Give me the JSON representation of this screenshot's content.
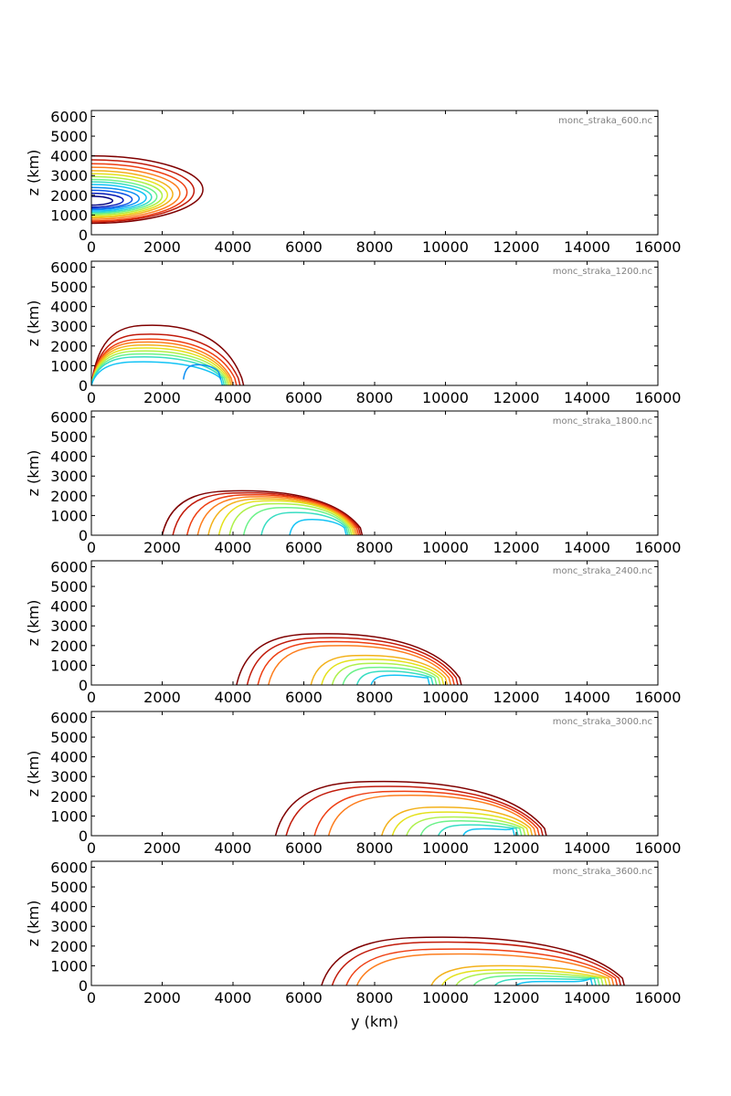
{
  "chart_data": [
    {
      "type": "contour",
      "file_label": "monc_straka_600.nc",
      "xlim": [
        0,
        16000
      ],
      "ylim": [
        0,
        6300
      ],
      "xticks": [
        "0",
        "2000",
        "4000",
        "6000",
        "8000",
        "10000",
        "12000",
        "14000",
        "16000"
      ],
      "yticks": [
        "0",
        "1000",
        "2000",
        "3000",
        "4000",
        "5000",
        "6000"
      ],
      "ylabel": "z (km)",
      "xlabel": "",
      "colors": [
        "#7f0000",
        "#c11a0a",
        "#ee3e12",
        "#fd7d1d",
        "#f3b11a",
        "#e4e11b",
        "#aef04a",
        "#6cf28a",
        "#37ddc2",
        "#13c3f5",
        "#0b8ff3",
        "#0a52e6",
        "#061ab8",
        "#00007f"
      ],
      "levels": [
        {
          "shape": "blob",
          "x": [
            0,
            3150
          ],
          "y": [
            580,
            4000
          ]
        },
        {
          "shape": "blob",
          "x": [
            0,
            2900
          ],
          "y": [
            650,
            3800
          ]
        },
        {
          "shape": "blob",
          "x": [
            0,
            2700
          ],
          "y": [
            700,
            3600
          ]
        },
        {
          "shape": "blob",
          "x": [
            0,
            2500
          ],
          "y": [
            780,
            3420
          ]
        },
        {
          "shape": "blob",
          "x": [
            0,
            2300
          ],
          "y": [
            860,
            3250
          ]
        },
        {
          "shape": "blob",
          "x": [
            0,
            2150
          ],
          "y": [
            930,
            3100
          ]
        },
        {
          "shape": "blob",
          "x": [
            0,
            2000
          ],
          "y": [
            1000,
            2950
          ]
        },
        {
          "shape": "blob",
          "x": [
            0,
            1850
          ],
          "y": [
            1070,
            2800
          ]
        },
        {
          "shape": "blob",
          "x": [
            0,
            1700
          ],
          "y": [
            1130,
            2680
          ]
        },
        {
          "shape": "blob",
          "x": [
            0,
            1550
          ],
          "y": [
            1200,
            2550
          ]
        },
        {
          "shape": "blob",
          "x": [
            0,
            1350
          ],
          "y": [
            1270,
            2400
          ]
        },
        {
          "shape": "blob",
          "x": [
            0,
            1150
          ],
          "y": [
            1330,
            2250
          ]
        },
        {
          "shape": "blob",
          "x": [
            0,
            900
          ],
          "y": [
            1400,
            2100
          ]
        },
        {
          "shape": "blob",
          "x": [
            0,
            600
          ],
          "y": [
            1500,
            1950
          ]
        }
      ]
    },
    {
      "type": "contour",
      "file_label": "monc_straka_1200.nc",
      "xlim": [
        0,
        16000
      ],
      "ylim": [
        0,
        6300
      ],
      "xticks": [
        "0",
        "2000",
        "4000",
        "6000",
        "8000",
        "10000",
        "12000",
        "14000",
        "16000"
      ],
      "yticks": [
        "0",
        "1000",
        "2000",
        "3000",
        "4000",
        "5000",
        "6000"
      ],
      "ylabel": "z (km)",
      "xlabel": "",
      "colors": [
        "#7f0000",
        "#c11a0a",
        "#ee3e12",
        "#fd7d1d",
        "#f3b11a",
        "#e4e11b",
        "#aef04a",
        "#6cf28a",
        "#37ddc2",
        "#13c3f5",
        "#0b8ff3"
      ],
      "levels": [
        {
          "shape": "tongue",
          "x": [
            0,
            4300
          ],
          "y": [
            0,
            3050
          ]
        },
        {
          "shape": "tongue",
          "x": [
            0,
            4200
          ],
          "y": [
            0,
            2600
          ]
        },
        {
          "shape": "tongue",
          "x": [
            0,
            4100
          ],
          "y": [
            0,
            2350
          ]
        },
        {
          "shape": "tongue",
          "x": [
            0,
            4000
          ],
          "y": [
            0,
            2200
          ]
        },
        {
          "shape": "tongue",
          "x": [
            0,
            3950
          ],
          "y": [
            0,
            2050
          ]
        },
        {
          "shape": "tongue",
          "x": [
            0,
            3900
          ],
          "y": [
            0,
            1900
          ]
        },
        {
          "shape": "tongue",
          "x": [
            0,
            3850
          ],
          "y": [
            0,
            1750
          ]
        },
        {
          "shape": "tongue",
          "x": [
            0,
            3800
          ],
          "y": [
            0,
            1600
          ]
        },
        {
          "shape": "tongue",
          "x": [
            0,
            3750
          ],
          "y": [
            0,
            1450
          ]
        },
        {
          "shape": "tongue",
          "x": [
            0,
            3700
          ],
          "y": [
            0,
            1200
          ]
        },
        {
          "shape": "tongue",
          "x": [
            2600,
            3650
          ],
          "y": [
            300,
            1050
          ]
        }
      ]
    },
    {
      "type": "contour",
      "file_label": "monc_straka_1800.nc",
      "xlim": [
        0,
        16000
      ],
      "ylim": [
        0,
        6300
      ],
      "xticks": [
        "0",
        "2000",
        "4000",
        "6000",
        "8000",
        "10000",
        "12000",
        "14000",
        "16000"
      ],
      "yticks": [
        "0",
        "1000",
        "2000",
        "3000",
        "4000",
        "5000",
        "6000"
      ],
      "ylabel": "z (km)",
      "xlabel": "",
      "colors": [
        "#7f0000",
        "#c11a0a",
        "#ee3e12",
        "#fd7d1d",
        "#f3b11a",
        "#e4e11b",
        "#aef04a",
        "#6cf28a",
        "#37ddc2",
        "#13c3f5"
      ],
      "levels": [
        {
          "shape": "tongue",
          "x": [
            2000,
            7650
          ],
          "y": [
            0,
            2250
          ]
        },
        {
          "shape": "tongue",
          "x": [
            2300,
            7600
          ],
          "y": [
            0,
            2150
          ]
        },
        {
          "shape": "tongue",
          "x": [
            2700,
            7550
          ],
          "y": [
            0,
            2050
          ]
        },
        {
          "shape": "tongue",
          "x": [
            3000,
            7500
          ],
          "y": [
            0,
            1950
          ]
        },
        {
          "shape": "tongue",
          "x": [
            3300,
            7450
          ],
          "y": [
            0,
            1850
          ]
        },
        {
          "shape": "tongue",
          "x": [
            3600,
            7400
          ],
          "y": [
            0,
            1750
          ]
        },
        {
          "shape": "tongue",
          "x": [
            3900,
            7350
          ],
          "y": [
            0,
            1600
          ]
        },
        {
          "shape": "tongue",
          "x": [
            4300,
            7300
          ],
          "y": [
            0,
            1400
          ]
        },
        {
          "shape": "tongue",
          "x": [
            4800,
            7250
          ],
          "y": [
            0,
            1150
          ]
        },
        {
          "shape": "tongue",
          "x": [
            5600,
            7200
          ],
          "y": [
            0,
            800
          ]
        }
      ]
    },
    {
      "type": "contour",
      "file_label": "monc_straka_2400.nc",
      "xlim": [
        0,
        16000
      ],
      "ylim": [
        0,
        6300
      ],
      "xticks": [
        "0",
        "2000",
        "4000",
        "6000",
        "8000",
        "10000",
        "12000",
        "14000",
        "16000"
      ],
      "yticks": [
        "0",
        "1000",
        "2000",
        "3000",
        "4000",
        "5000",
        "6000"
      ],
      "ylabel": "z (km)",
      "xlabel": "",
      "colors": [
        "#7f0000",
        "#c11a0a",
        "#ee3e12",
        "#fd7d1d",
        "#f3b11a",
        "#e4e11b",
        "#aef04a",
        "#6cf28a",
        "#37ddc2",
        "#13c3f5"
      ],
      "levels": [
        {
          "shape": "tongue",
          "x": [
            4100,
            10450
          ],
          "y": [
            0,
            2600
          ]
        },
        {
          "shape": "tongue",
          "x": [
            4400,
            10350
          ],
          "y": [
            0,
            2400
          ]
        },
        {
          "shape": "tongue",
          "x": [
            4700,
            10250
          ],
          "y": [
            0,
            2200
          ]
        },
        {
          "shape": "tongue",
          "x": [
            5000,
            10150
          ],
          "y": [
            0,
            2000
          ]
        },
        {
          "shape": "tongue",
          "x": [
            6200,
            10050
          ],
          "y": [
            0,
            1500
          ]
        },
        {
          "shape": "tongue",
          "x": [
            6500,
            9950
          ],
          "y": [
            0,
            1300
          ]
        },
        {
          "shape": "tongue",
          "x": [
            6800,
            9850
          ],
          "y": [
            0,
            1100
          ]
        },
        {
          "shape": "tongue",
          "x": [
            7100,
            9750
          ],
          "y": [
            0,
            900
          ]
        },
        {
          "shape": "tongue",
          "x": [
            7500,
            9650
          ],
          "y": [
            0,
            700
          ]
        },
        {
          "shape": "tongue",
          "x": [
            7900,
            9550
          ],
          "y": [
            0,
            500
          ]
        }
      ]
    },
    {
      "type": "contour",
      "file_label": "monc_straka_3000.nc",
      "xlim": [
        0,
        16000
      ],
      "ylim": [
        0,
        6300
      ],
      "xticks": [
        "0",
        "2000",
        "4000",
        "6000",
        "8000",
        "10000",
        "12000",
        "14000",
        "16000"
      ],
      "yticks": [
        "0",
        "1000",
        "2000",
        "3000",
        "4000",
        "5000",
        "6000"
      ],
      "ylabel": "z (km)",
      "xlabel": "",
      "colors": [
        "#7f0000",
        "#c11a0a",
        "#ee3e12",
        "#fd7d1d",
        "#f3b11a",
        "#e4e11b",
        "#aef04a",
        "#6cf28a",
        "#37ddc2",
        "#13c3f5"
      ],
      "levels": [
        {
          "shape": "tongue",
          "x": [
            5200,
            12850
          ],
          "y": [
            0,
            2750
          ]
        },
        {
          "shape": "tongue",
          "x": [
            5500,
            12750
          ],
          "y": [
            0,
            2500
          ]
        },
        {
          "shape": "tongue",
          "x": [
            6300,
            12650
          ],
          "y": [
            0,
            2250
          ]
        },
        {
          "shape": "tongue",
          "x": [
            6700,
            12550
          ],
          "y": [
            0,
            2050
          ]
        },
        {
          "shape": "tongue",
          "x": [
            8200,
            12450
          ],
          "y": [
            0,
            1450
          ]
        },
        {
          "shape": "tongue",
          "x": [
            8500,
            12350
          ],
          "y": [
            0,
            1200
          ]
        },
        {
          "shape": "tongue",
          "x": [
            8900,
            12250
          ],
          "y": [
            0,
            950
          ]
        },
        {
          "shape": "tongue",
          "x": [
            9300,
            12150
          ],
          "y": [
            0,
            750
          ]
        },
        {
          "shape": "tongue",
          "x": [
            9800,
            12050
          ],
          "y": [
            0,
            550
          ]
        },
        {
          "shape": "tongue",
          "x": [
            10500,
            11950
          ],
          "y": [
            0,
            350
          ]
        }
      ]
    },
    {
      "type": "contour",
      "file_label": "monc_straka_3600.nc",
      "xlim": [
        0,
        16000
      ],
      "ylim": [
        0,
        6300
      ],
      "xticks": [
        "0",
        "2000",
        "4000",
        "6000",
        "8000",
        "10000",
        "12000",
        "14000",
        "16000"
      ],
      "yticks": [
        "0",
        "1000",
        "2000",
        "3000",
        "4000",
        "5000",
        "6000"
      ],
      "ylabel": "z (km)",
      "xlabel": "y (km)",
      "colors": [
        "#7f0000",
        "#c11a0a",
        "#ee3e12",
        "#fd7d1d",
        "#f3b11a",
        "#e4e11b",
        "#aef04a",
        "#6cf28a",
        "#37ddc2",
        "#13c3f5"
      ],
      "levels": [
        {
          "shape": "tongue",
          "x": [
            6500,
            15050
          ],
          "y": [
            0,
            2450
          ]
        },
        {
          "shape": "tongue",
          "x": [
            6800,
            14950
          ],
          "y": [
            0,
            2200
          ]
        },
        {
          "shape": "tongue",
          "x": [
            7200,
            14850
          ],
          "y": [
            0,
            1850
          ]
        },
        {
          "shape": "tongue",
          "x": [
            7500,
            14750
          ],
          "y": [
            0,
            1600
          ]
        },
        {
          "shape": "tongue",
          "x": [
            9600,
            14650
          ],
          "y": [
            0,
            1000
          ]
        },
        {
          "shape": "tongue",
          "x": [
            9900,
            14550
          ],
          "y": [
            0,
            800
          ]
        },
        {
          "shape": "tongue",
          "x": [
            10300,
            14450
          ],
          "y": [
            0,
            650
          ]
        },
        {
          "shape": "tongue",
          "x": [
            10800,
            14350
          ],
          "y": [
            0,
            500
          ]
        },
        {
          "shape": "tongue",
          "x": [
            11400,
            14250
          ],
          "y": [
            0,
            350
          ]
        },
        {
          "shape": "tongue",
          "x": [
            12000,
            14150
          ],
          "y": [
            0,
            200
          ]
        }
      ]
    }
  ]
}
